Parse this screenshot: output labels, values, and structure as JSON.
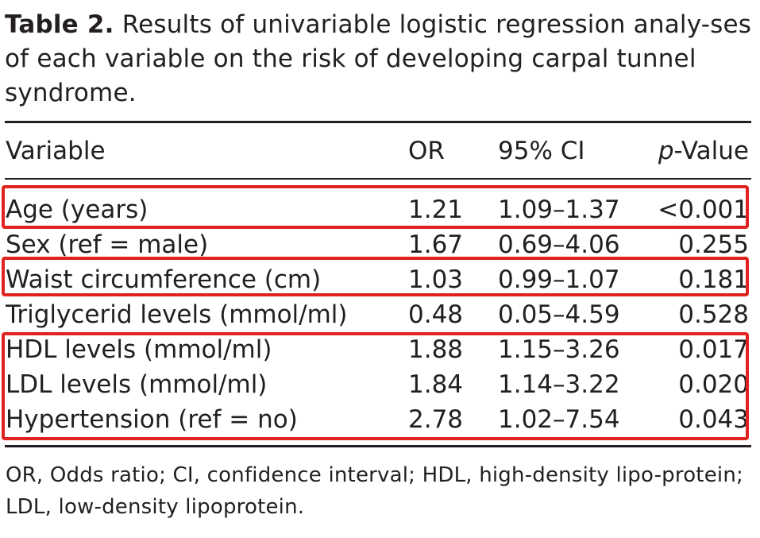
{
  "caption": {
    "label": "Table 2.",
    "text": "Results of univariable logistic regression analy-ses of each variable on the risk of developing carpal tunnel syndrome."
  },
  "table": {
    "headers": {
      "variable": "Variable",
      "or": "OR",
      "ci": "95% CI",
      "p_italic": "p",
      "p_rest": "-Value"
    },
    "rows": [
      {
        "variable": "Age (years)",
        "or": "1.21",
        "ci": "1.09–1.37",
        "p": "<0.001"
      },
      {
        "variable": "Sex (ref = male)",
        "or": "1.67",
        "ci": "0.69–4.06",
        "p": "0.255"
      },
      {
        "variable": "Waist circumference (cm)",
        "or": "1.03",
        "ci": "0.99–1.07",
        "p": "0.181"
      },
      {
        "variable": "Triglycerid levels (mmol/ml)",
        "or": "0.48",
        "ci": "0.05–4.59",
        "p": "0.528"
      },
      {
        "variable": "HDL levels (mmol/ml)",
        "or": "1.88",
        "ci": "1.15–3.26",
        "p": "0.017"
      },
      {
        "variable": "LDL levels (mmol/ml)",
        "or": "1.84",
        "ci": "1.14–3.22",
        "p": "0.020"
      },
      {
        "variable": "Hypertension (ref = no)",
        "or": "2.78",
        "ci": "1.02–7.54",
        "p": "0.043"
      }
    ]
  },
  "highlight_color": "#e0231e",
  "footnote": "OR, Odds ratio; CI, confidence interval; HDL, high-density lipo-protein; LDL, low-density lipoprotein."
}
